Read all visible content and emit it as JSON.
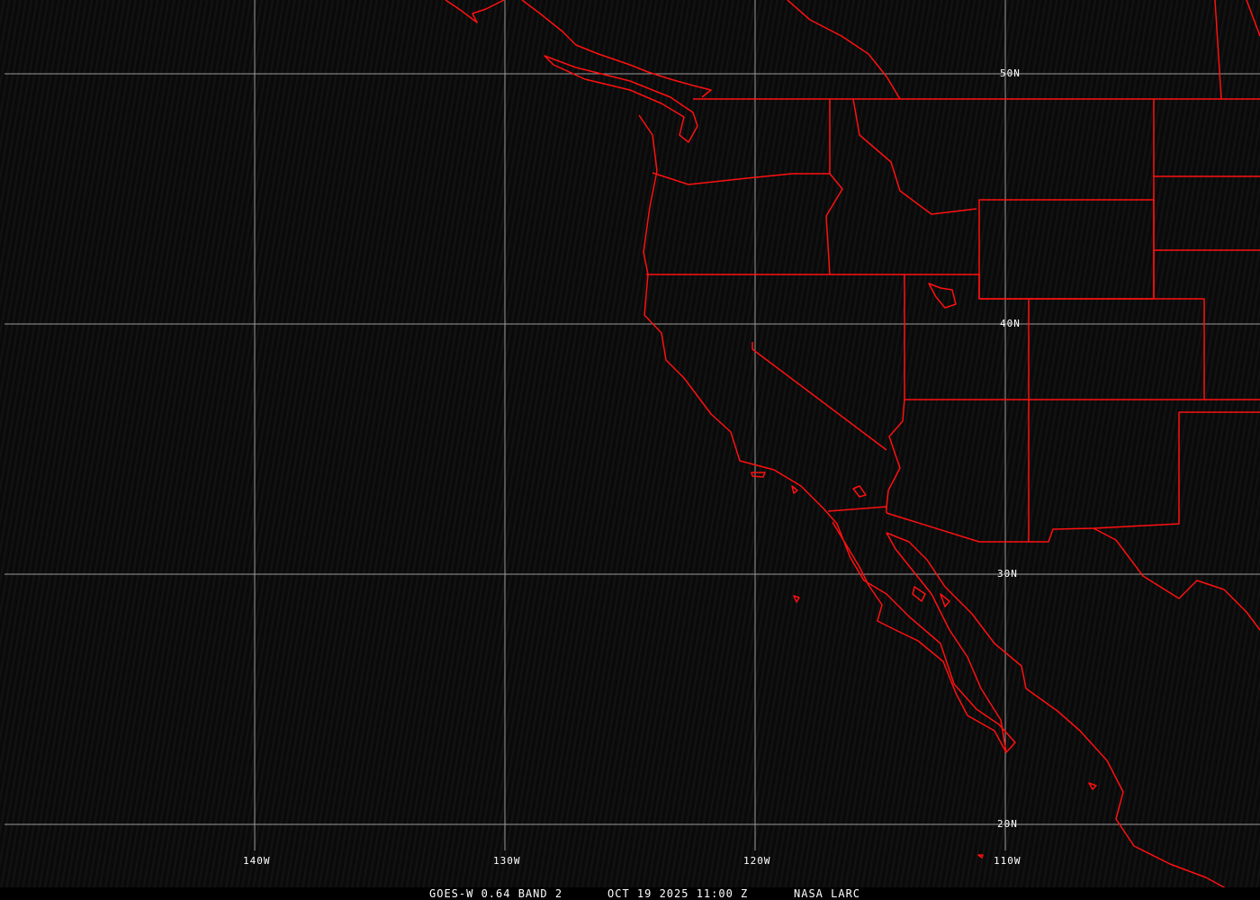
{
  "map": {
    "projection": "lat-lon grid",
    "grid_color": "#a0a0a0",
    "outline_color": "#ff0000",
    "lat_labels": [
      "50N",
      "40N",
      "30N",
      "20N"
    ],
    "lon_labels": [
      "140W",
      "130W",
      "120W",
      "110W"
    ]
  },
  "caption": {
    "product": "GOES-W 0.64 BAND 2",
    "datetime": "OCT 19 2025 11:00 Z",
    "source": "NASA LARC"
  }
}
